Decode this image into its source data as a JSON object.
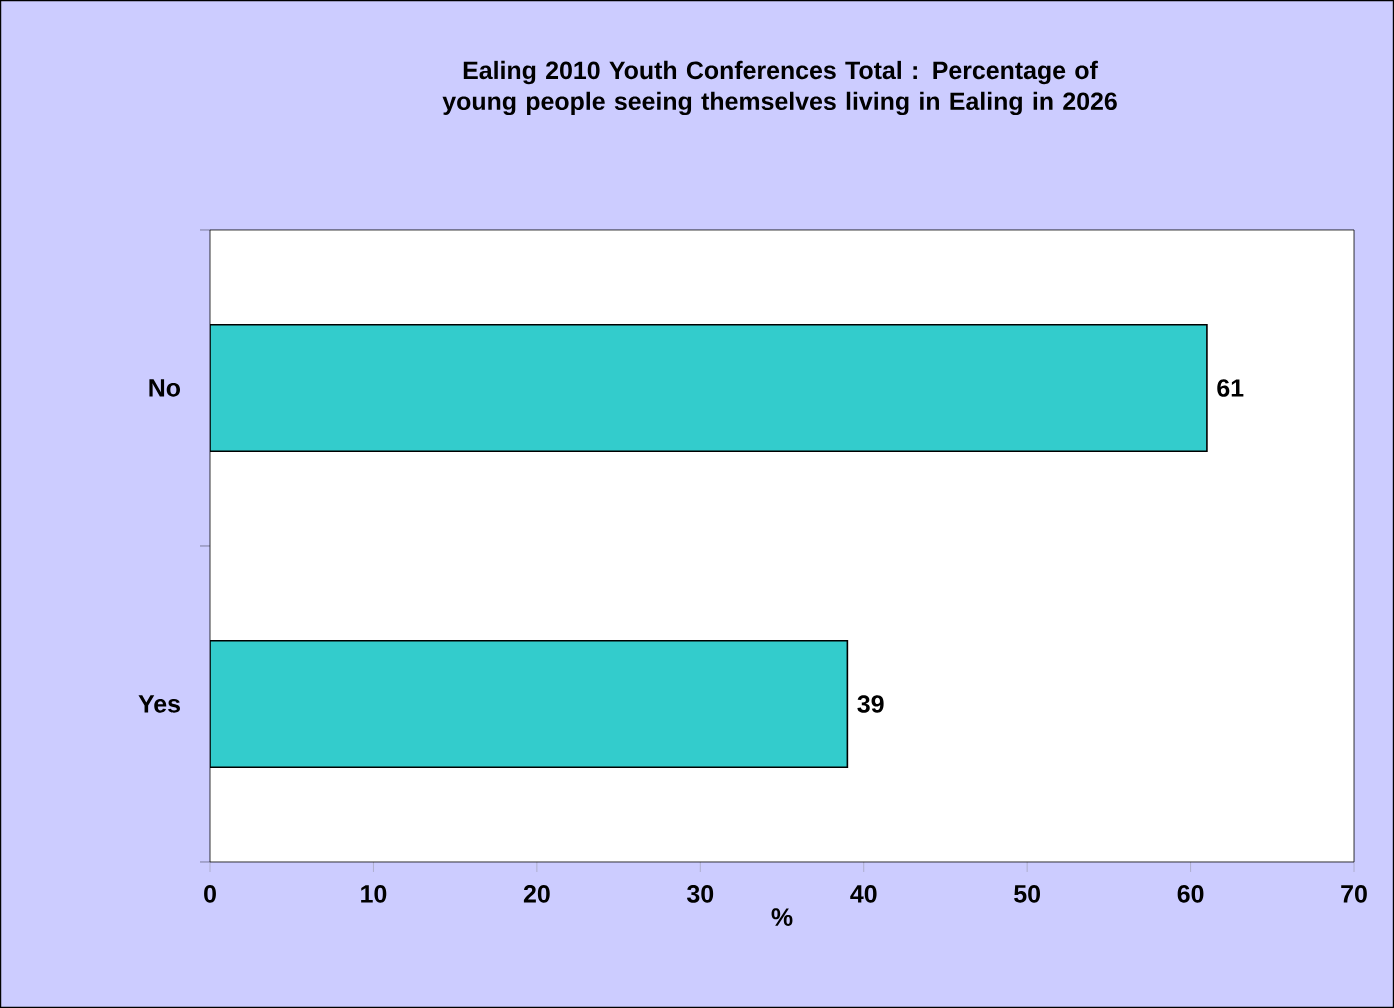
{
  "chart_data": {
    "type": "bar",
    "orientation": "horizontal",
    "title": "Ealing 2010 Youth Conferences Total : Percentage of young people seeing themselves living in Ealing in 2026",
    "categories": [
      "No",
      "Yes"
    ],
    "values": [
      61,
      39
    ],
    "color": "#33cccc",
    "xlim": [
      0,
      70
    ],
    "xticks": [
      0,
      10,
      20,
      30,
      40,
      50,
      60,
      70
    ],
    "xlabel": "%",
    "data_labels": true
  }
}
